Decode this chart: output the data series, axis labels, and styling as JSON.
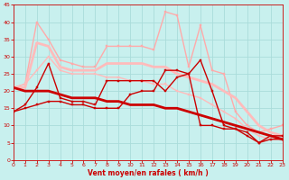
{
  "xlabel": "Vent moyen/en rafales ( km/h )",
  "xlim": [
    0,
    23
  ],
  "ylim": [
    0,
    45
  ],
  "yticks": [
    0,
    5,
    10,
    15,
    20,
    25,
    30,
    35,
    40,
    45
  ],
  "xticks": [
    0,
    1,
    2,
    3,
    4,
    5,
    6,
    7,
    8,
    9,
    10,
    11,
    12,
    13,
    14,
    15,
    16,
    17,
    18,
    19,
    20,
    21,
    22,
    23
  ],
  "bg_color": "#c8f0ee",
  "grid_color": "#aadcda",
  "tick_color": "#cc0000",
  "xlabel_color": "#cc0000",
  "lines": [
    {
      "x": [
        0,
        1,
        2,
        3,
        4,
        5,
        6,
        7,
        8,
        9,
        10,
        11,
        12,
        13,
        14,
        15,
        16,
        17,
        18,
        19,
        20,
        21,
        22,
        23
      ],
      "y": [
        21,
        22,
        40,
        35,
        29,
        28,
        27,
        27,
        33,
        33,
        33,
        33,
        32,
        43,
        42,
        27,
        39,
        26,
        25,
        14,
        10,
        8,
        9,
        10
      ],
      "color": "#ffaaaa",
      "lw": 1.0,
      "marker": "s",
      "ms": 2.0,
      "zorder": 2
    },
    {
      "x": [
        0,
        1,
        2,
        3,
        4,
        5,
        6,
        7,
        8,
        9,
        10,
        11,
        12,
        13,
        14,
        15,
        16,
        17,
        18,
        19,
        20,
        21,
        22,
        23
      ],
      "y": [
        21,
        21,
        34,
        33,
        27,
        26,
        26,
        26,
        28,
        28,
        28,
        28,
        27,
        27,
        25,
        24,
        23,
        22,
        20,
        18,
        14,
        10,
        8,
        7
      ],
      "color": "#ffbbbb",
      "lw": 2.0,
      "marker": null,
      "ms": 0,
      "zorder": 2
    },
    {
      "x": [
        0,
        1,
        2,
        3,
        4,
        5,
        6,
        7,
        8,
        9,
        10,
        11,
        12,
        13,
        14,
        15,
        16,
        17,
        18,
        19,
        20,
        21,
        22,
        23
      ],
      "y": [
        21,
        22,
        26,
        30,
        26,
        25,
        25,
        25,
        24,
        24,
        23,
        23,
        22,
        22,
        20,
        19,
        18,
        16,
        14,
        12,
        9,
        7,
        6,
        6
      ],
      "color": "#ffbbbb",
      "lw": 1.0,
      "marker": "s",
      "ms": 2.0,
      "zorder": 2
    },
    {
      "x": [
        0,
        1,
        2,
        3,
        4,
        5,
        6,
        7,
        8,
        9,
        10,
        11,
        12,
        13,
        14,
        15,
        16,
        17,
        18,
        19,
        20,
        21,
        22,
        23
      ],
      "y": [
        14,
        16,
        21,
        28,
        18,
        17,
        17,
        16,
        23,
        23,
        23,
        23,
        23,
        20,
        24,
        25,
        10,
        10,
        9,
        9,
        8,
        5,
        6,
        6
      ],
      "color": "#cc0000",
      "lw": 1.0,
      "marker": "s",
      "ms": 2.0,
      "zorder": 3
    },
    {
      "x": [
        0,
        1,
        2,
        3,
        4,
        5,
        6,
        7,
        8,
        9,
        10,
        11,
        12,
        13,
        14,
        15,
        16,
        17,
        18,
        19,
        20,
        21,
        22,
        23
      ],
      "y": [
        14,
        15,
        16,
        17,
        17,
        16,
        16,
        15,
        15,
        15,
        19,
        20,
        20,
        26,
        26,
        25,
        29,
        20,
        10,
        9,
        7,
        5,
        7,
        7
      ],
      "color": "#cc0000",
      "lw": 1.0,
      "marker": "s",
      "ms": 2.0,
      "zorder": 3
    },
    {
      "x": [
        0,
        1,
        2,
        3,
        4,
        5,
        6,
        7,
        8,
        9,
        10,
        11,
        12,
        13,
        14,
        15,
        16,
        17,
        18,
        19,
        20,
        21,
        22,
        23
      ],
      "y": [
        21,
        20,
        20,
        20,
        19,
        18,
        18,
        18,
        17,
        17,
        16,
        16,
        16,
        15,
        15,
        14,
        13,
        12,
        11,
        10,
        9,
        8,
        7,
        6
      ],
      "color": "#cc0000",
      "lw": 2.0,
      "marker": null,
      "ms": 0,
      "zorder": 3
    }
  ],
  "arrow_angles": [
    90,
    90,
    88,
    85,
    83,
    83,
    83,
    83,
    83,
    83,
    83,
    83,
    83,
    83,
    83,
    83,
    83,
    83,
    83,
    83,
    97,
    108,
    120,
    130
  ]
}
